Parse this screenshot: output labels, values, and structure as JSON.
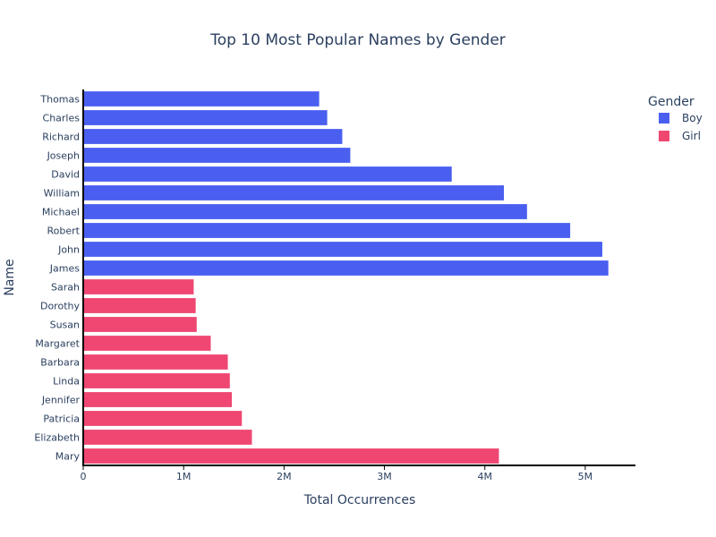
{
  "chart_data": {
    "type": "bar",
    "orientation": "horizontal",
    "title": "Top 10 Most Popular Names by Gender",
    "xlabel": "Total Occurrences",
    "ylabel": "Name",
    "xlim": [
      0,
      5500000
    ],
    "xticks": [
      {
        "value": 0,
        "label": "0"
      },
      {
        "value": 1000000,
        "label": "1M"
      },
      {
        "value": 2000000,
        "label": "2M"
      },
      {
        "value": 3000000,
        "label": "3M"
      },
      {
        "value": 4000000,
        "label": "4M"
      },
      {
        "value": 5000000,
        "label": "5M"
      }
    ],
    "grid": false,
    "legend": {
      "title": "Gender",
      "position": "top-right"
    },
    "categories": [
      "Thomas",
      "Charles",
      "Richard",
      "Joseph",
      "David",
      "William",
      "Michael",
      "Robert",
      "John",
      "James",
      "Sarah",
      "Dorothy",
      "Susan",
      "Margaret",
      "Barbara",
      "Linda",
      "Jennifer",
      "Patricia",
      "Elizabeth",
      "Mary"
    ],
    "series": [
      {
        "name": "Boy",
        "color": "#4a5ff0",
        "points": [
          {
            "name": "Thomas",
            "value": 2350000
          },
          {
            "name": "Charles",
            "value": 2430000
          },
          {
            "name": "Richard",
            "value": 2580000
          },
          {
            "name": "Joseph",
            "value": 2660000
          },
          {
            "name": "David",
            "value": 3670000
          },
          {
            "name": "William",
            "value": 4190000
          },
          {
            "name": "Michael",
            "value": 4420000
          },
          {
            "name": "Robert",
            "value": 4850000
          },
          {
            "name": "John",
            "value": 5170000
          },
          {
            "name": "James",
            "value": 5230000
          }
        ]
      },
      {
        "name": "Girl",
        "color": "#ef4772",
        "points": [
          {
            "name": "Sarah",
            "value": 1100000
          },
          {
            "name": "Dorothy",
            "value": 1120000
          },
          {
            "name": "Susan",
            "value": 1130000
          },
          {
            "name": "Margaret",
            "value": 1270000
          },
          {
            "name": "Barbara",
            "value": 1440000
          },
          {
            "name": "Linda",
            "value": 1460000
          },
          {
            "name": "Jennifer",
            "value": 1480000
          },
          {
            "name": "Patricia",
            "value": 1580000
          },
          {
            "name": "Elizabeth",
            "value": 1680000
          },
          {
            "name": "Mary",
            "value": 4140000
          }
        ]
      }
    ]
  }
}
